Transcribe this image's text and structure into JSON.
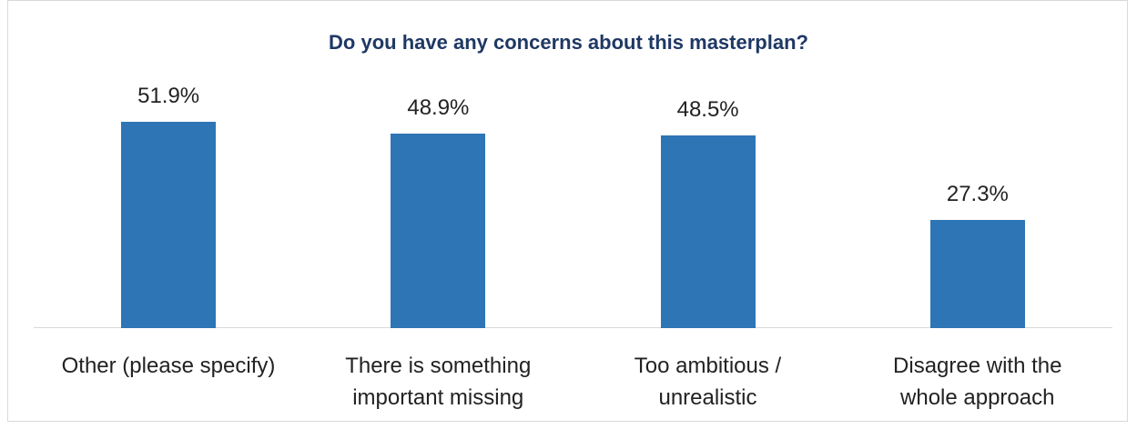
{
  "chart_data": {
    "type": "bar",
    "title": "Do you have any concerns about this masterplan?",
    "categories": [
      "Other (please specify)",
      "There is something\nimportant missing",
      "Too ambitious /\nunrealistic",
      "Disagree with the\nwhole approach"
    ],
    "values": [
      51.9,
      48.9,
      48.5,
      27.3
    ],
    "value_labels": [
      "51.9%",
      "48.9%",
      "48.5%",
      "27.3%"
    ],
    "color": "#2e75b6",
    "ylim": [
      0,
      60
    ]
  }
}
